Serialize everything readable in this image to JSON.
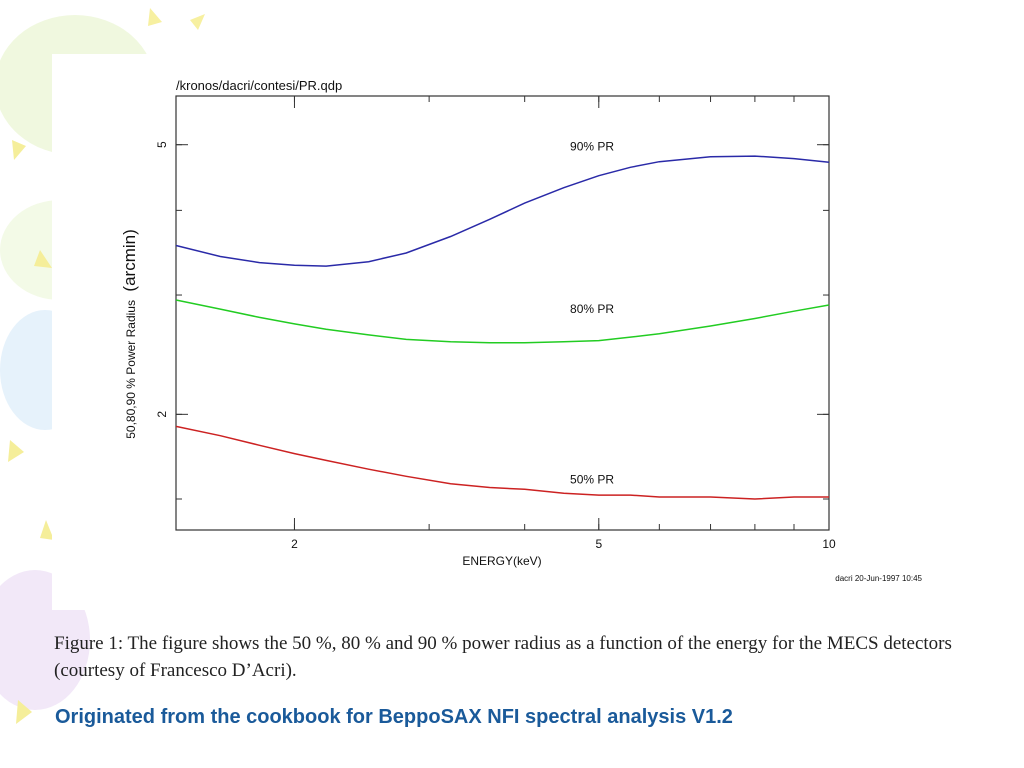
{
  "chart_data": {
    "type": "line",
    "header": "/kronos/dacri/contesi/PR.qdp",
    "xlabel": "ENERGY(keV)",
    "ylabel_main": "50,80,90 % Power Radius",
    "ylabel_unit": "(arcmin)",
    "x_scale": "log",
    "y_scale": "log",
    "xlim": [
      1.4,
      10
    ],
    "ylim": [
      1.35,
      5.9
    ],
    "x_ticks": [
      {
        "value": 2,
        "label": "2"
      },
      {
        "value": 5,
        "label": "5"
      },
      {
        "value": 10,
        "label": "10"
      }
    ],
    "y_ticks": [
      {
        "value": 2,
        "label": "2"
      },
      {
        "value": 5,
        "label": "5"
      }
    ],
    "series": [
      {
        "name": "90% PR",
        "color": "#2a2aa8",
        "label_at": [
          4.9,
          4.9
        ],
        "x": [
          1.4,
          1.6,
          1.8,
          2.0,
          2.2,
          2.5,
          2.8,
          3.2,
          3.6,
          4.0,
          4.5,
          5.0,
          5.5,
          6.0,
          7.0,
          8.0,
          9.0,
          10.0
        ],
        "y": [
          3.55,
          3.42,
          3.35,
          3.32,
          3.31,
          3.36,
          3.46,
          3.66,
          3.88,
          4.1,
          4.32,
          4.5,
          4.63,
          4.72,
          4.8,
          4.81,
          4.77,
          4.71
        ]
      },
      {
        "name": "80% PR",
        "color": "#22cc22",
        "label_at": [
          4.9,
          2.82
        ],
        "x": [
          1.4,
          1.6,
          1.8,
          2.0,
          2.2,
          2.5,
          2.8,
          3.2,
          3.6,
          4.0,
          4.5,
          5.0,
          5.5,
          6.0,
          7.0,
          8.0,
          9.0,
          10.0
        ],
        "y": [
          2.95,
          2.86,
          2.78,
          2.72,
          2.67,
          2.62,
          2.58,
          2.56,
          2.55,
          2.55,
          2.56,
          2.57,
          2.6,
          2.63,
          2.7,
          2.77,
          2.84,
          2.9
        ]
      },
      {
        "name": "50% PR",
        "color": "#cc2222",
        "label_at": [
          4.9,
          1.58
        ],
        "x": [
          1.4,
          1.6,
          1.8,
          2.0,
          2.2,
          2.5,
          2.8,
          3.2,
          3.6,
          4.0,
          4.5,
          5.0,
          5.5,
          6.0,
          7.0,
          8.0,
          9.0,
          10.0
        ],
        "y": [
          1.92,
          1.86,
          1.8,
          1.75,
          1.71,
          1.66,
          1.62,
          1.58,
          1.56,
          1.55,
          1.53,
          1.52,
          1.52,
          1.51,
          1.51,
          1.5,
          1.51,
          1.51
        ]
      }
    ],
    "annotation": "dacri 20-Jun-1997 10:45"
  },
  "caption": "Figure 1: The figure shows the 50 %, 80 % and 90 % power radius as a function of the energy for the MECS detectors (courtesy of Francesco D’Acri).",
  "footer_note": "Originated from the cookbook for BeppoSAX NFI spectral analysis V1.2"
}
